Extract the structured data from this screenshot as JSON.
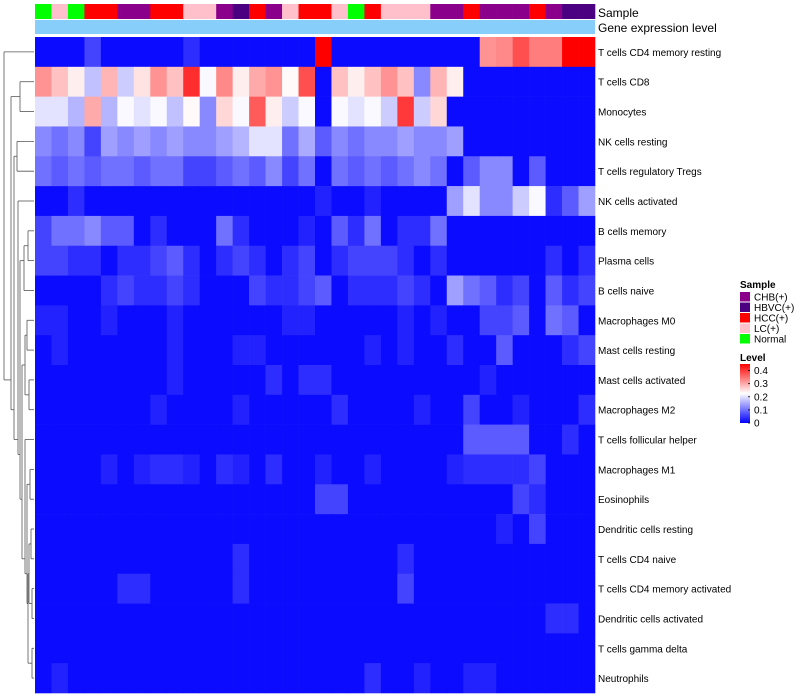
{
  "chart_data": {
    "type": "heatmap",
    "annotation_tracks": [
      "Sample",
      "Gene expression level"
    ],
    "rows": [
      "T cells CD4 memory resting",
      "T cells CD8",
      "Monocytes",
      "NK cells resting",
      "T cells regulatory  Tregs",
      "NK cells activated",
      "B cells memory",
      "Plasma cells",
      "B cells naive",
      "Macrophages M0",
      "Mast cells resting",
      "Mast cells activated",
      "Macrophages M2",
      "T cells follicular helper",
      "Macrophages M1",
      "Eosinophils",
      "Dendritic cells resting",
      "T cells CD4 naive",
      "T cells CD4 memory activated",
      "Dendritic cells activated",
      "T cells gamma delta",
      "Neutrophils"
    ],
    "columns": 34,
    "sample_groups": [
      "Normal",
      "LC(+)",
      "Normal",
      "HCC(+)",
      "HCC(+)",
      "CHB(+)",
      "CHB(+)",
      "HCC(+)",
      "HCC(+)",
      "LC(+)",
      "LC(+)",
      "CHB(+)",
      "HBVC(+)",
      "HCC(+)",
      "CHB(+)",
      "LC(+)",
      "HCC(+)",
      "HCC(+)",
      "LC(+)",
      "Normal",
      "HCC(+)",
      "LC(+)",
      "LC(+)",
      "LC(+)",
      "CHB(+)",
      "CHB(+)",
      "HCC(+)",
      "CHB(+)",
      "CHB(+)",
      "CHB(+)",
      "HCC(+)",
      "CHB(+)",
      "HBVC(+)",
      "HBVC(+)"
    ],
    "values": [
      [
        0.01,
        0.01,
        0.01,
        0.06,
        0.01,
        0.01,
        0.01,
        0.01,
        0.01,
        0.04,
        0.01,
        0.01,
        0.01,
        0.01,
        0.01,
        0.01,
        0.01,
        0.45,
        0.01,
        0.01,
        0.01,
        0.01,
        0.01,
        0.01,
        0.01,
        0.01,
        0.01,
        0.32,
        0.33,
        0.38,
        0.34,
        0.34,
        0.45,
        0.45
      ],
      [
        0.32,
        0.28,
        0.24,
        0.17,
        0.29,
        0.18,
        0.25,
        0.32,
        0.28,
        0.41,
        0.22,
        0.33,
        0.24,
        0.3,
        0.32,
        0.23,
        0.38,
        0.01,
        0.28,
        0.24,
        0.28,
        0.32,
        0.28,
        0.12,
        0.29,
        0.24,
        0.01,
        0.01,
        0.01,
        0.01,
        0.01,
        0.01,
        0.01,
        0.01
      ],
      [
        0.2,
        0.2,
        0.16,
        0.3,
        0.16,
        0.22,
        0.2,
        0.22,
        0.17,
        0.23,
        0.12,
        0.26,
        0.22,
        0.37,
        0.24,
        0.18,
        0.22,
        0.01,
        0.22,
        0.2,
        0.22,
        0.18,
        0.4,
        0.18,
        0.26,
        0.01,
        0.01,
        0.01,
        0.01,
        0.01,
        0.01,
        0.01,
        0.01,
        0.01
      ],
      [
        0.12,
        0.1,
        0.12,
        0.06,
        0.14,
        0.12,
        0.14,
        0.12,
        0.14,
        0.12,
        0.12,
        0.14,
        0.16,
        0.2,
        0.2,
        0.1,
        0.15,
        0.08,
        0.12,
        0.1,
        0.12,
        0.12,
        0.14,
        0.12,
        0.12,
        0.14,
        0.01,
        0.01,
        0.01,
        0.01,
        0.01,
        0.01,
        0.01,
        0.01
      ],
      [
        0.1,
        0.08,
        0.1,
        0.08,
        0.1,
        0.1,
        0.08,
        0.1,
        0.1,
        0.06,
        0.06,
        0.08,
        0.1,
        0.08,
        0.12,
        0.06,
        0.1,
        0.01,
        0.1,
        0.08,
        0.1,
        0.08,
        0.1,
        0.12,
        0.1,
        0.01,
        0.08,
        0.12,
        0.12,
        0.01,
        0.08,
        0.01,
        0.01,
        0.01
      ],
      [
        0.01,
        0.01,
        0.04,
        0.01,
        0.01,
        0.01,
        0.01,
        0.01,
        0.01,
        0.01,
        0.01,
        0.01,
        0.01,
        0.01,
        0.01,
        0.01,
        0.01,
        0.03,
        0.01,
        0.01,
        0.03,
        0.01,
        0.01,
        0.01,
        0.01,
        0.14,
        0.2,
        0.12,
        0.12,
        0.18,
        0.22,
        0.04,
        0.08,
        0.14
      ],
      [
        0.06,
        0.1,
        0.1,
        0.12,
        0.08,
        0.08,
        0.01,
        0.04,
        0.01,
        0.01,
        0.01,
        0.1,
        0.04,
        0.01,
        0.01,
        0.01,
        0.03,
        0.01,
        0.08,
        0.04,
        0.1,
        0.01,
        0.04,
        0.04,
        0.1,
        0.01,
        0.01,
        0.01,
        0.01,
        0.01,
        0.01,
        0.01,
        0.01,
        0.01
      ],
      [
        0.06,
        0.06,
        0.04,
        0.04,
        0.01,
        0.04,
        0.04,
        0.06,
        0.08,
        0.04,
        0.01,
        0.04,
        0.06,
        0.04,
        0.01,
        0.04,
        0.06,
        0.01,
        0.04,
        0.06,
        0.06,
        0.06,
        0.04,
        0.01,
        0.04,
        0.01,
        0.01,
        0.01,
        0.01,
        0.01,
        0.01,
        0.04,
        0.01,
        0.04
      ],
      [
        0.01,
        0.01,
        0.01,
        0.01,
        0.04,
        0.06,
        0.04,
        0.04,
        0.06,
        0.04,
        0.01,
        0.01,
        0.01,
        0.06,
        0.04,
        0.04,
        0.06,
        0.08,
        0.01,
        0.04,
        0.04,
        0.04,
        0.06,
        0.04,
        0.01,
        0.14,
        0.1,
        0.08,
        0.04,
        0.06,
        0.01,
        0.08,
        0.04,
        0.06
      ],
      [
        0.03,
        0.03,
        0.01,
        0.01,
        0.03,
        0.01,
        0.01,
        0.01,
        0.03,
        0.01,
        0.01,
        0.01,
        0.01,
        0.01,
        0.01,
        0.03,
        0.03,
        0.01,
        0.01,
        0.01,
        0.01,
        0.01,
        0.03,
        0.01,
        0.03,
        0.01,
        0.01,
        0.06,
        0.06,
        0.08,
        0.01,
        0.1,
        0.08,
        0.01
      ],
      [
        0.01,
        0.03,
        0.01,
        0.01,
        0.01,
        0.01,
        0.01,
        0.01,
        0.03,
        0.01,
        0.01,
        0.01,
        0.03,
        0.03,
        0.01,
        0.01,
        0.01,
        0.01,
        0.01,
        0.01,
        0.03,
        0.01,
        0.03,
        0.01,
        0.01,
        0.04,
        0.01,
        0.01,
        0.08,
        0.01,
        0.01,
        0.01,
        0.04,
        0.06
      ],
      [
        0.01,
        0.01,
        0.01,
        0.01,
        0.01,
        0.01,
        0.01,
        0.01,
        0.03,
        0.01,
        0.01,
        0.01,
        0.01,
        0.01,
        0.04,
        0.01,
        0.04,
        0.04,
        0.01,
        0.01,
        0.01,
        0.01,
        0.01,
        0.01,
        0.01,
        0.01,
        0.01,
        0.03,
        0.01,
        0.01,
        0.01,
        0.01,
        0.01,
        0.01
      ],
      [
        0.01,
        0.01,
        0.01,
        0.01,
        0.01,
        0.01,
        0.01,
        0.03,
        0.01,
        0.01,
        0.01,
        0.01,
        0.03,
        0.01,
        0.01,
        0.01,
        0.01,
        0.01,
        0.04,
        0.01,
        0.01,
        0.01,
        0.01,
        0.03,
        0.01,
        0.01,
        0.06,
        0.01,
        0.01,
        0.03,
        0.01,
        0.01,
        0.01,
        0.04
      ],
      [
        0.01,
        0.01,
        0.01,
        0.01,
        0.01,
        0.01,
        0.01,
        0.01,
        0.01,
        0.01,
        0.01,
        0.01,
        0.01,
        0.01,
        0.01,
        0.01,
        0.01,
        0.01,
        0.01,
        0.01,
        0.01,
        0.01,
        0.01,
        0.01,
        0.01,
        0.01,
        0.08,
        0.08,
        0.08,
        0.08,
        0.01,
        0.01,
        0.04,
        0.01
      ],
      [
        0.01,
        0.01,
        0.01,
        0.01,
        0.03,
        0.01,
        0.03,
        0.04,
        0.04,
        0.03,
        0.01,
        0.04,
        0.03,
        0.01,
        0.04,
        0.01,
        0.01,
        0.03,
        0.01,
        0.01,
        0.03,
        0.01,
        0.01,
        0.01,
        0.01,
        0.03,
        0.04,
        0.04,
        0.04,
        0.04,
        0.06,
        0.01,
        0.01,
        0.01
      ],
      [
        0.01,
        0.01,
        0.01,
        0.01,
        0.01,
        0.01,
        0.01,
        0.01,
        0.01,
        0.01,
        0.01,
        0.01,
        0.01,
        0.01,
        0.01,
        0.01,
        0.01,
        0.06,
        0.06,
        0.01,
        0.01,
        0.01,
        0.01,
        0.01,
        0.01,
        0.01,
        0.01,
        0.01,
        0.01,
        0.06,
        0.04,
        0.01,
        0.01,
        0.01
      ],
      [
        0.01,
        0.01,
        0.01,
        0.01,
        0.01,
        0.01,
        0.01,
        0.01,
        0.01,
        0.01,
        0.01,
        0.01,
        0.01,
        0.01,
        0.01,
        0.01,
        0.01,
        0.01,
        0.01,
        0.01,
        0.01,
        0.01,
        0.01,
        0.01,
        0.01,
        0.01,
        0.01,
        0.01,
        0.03,
        0.01,
        0.06,
        0.01,
        0.01,
        0.01
      ],
      [
        0.01,
        0.01,
        0.01,
        0.01,
        0.01,
        0.01,
        0.01,
        0.01,
        0.01,
        0.01,
        0.01,
        0.01,
        0.04,
        0.01,
        0.01,
        0.01,
        0.01,
        0.01,
        0.01,
        0.01,
        0.01,
        0.01,
        0.04,
        0.01,
        0.01,
        0.01,
        0.01,
        0.01,
        0.01,
        0.01,
        0.01,
        0.01,
        0.01,
        0.01
      ],
      [
        0.01,
        0.01,
        0.01,
        0.01,
        0.01,
        0.04,
        0.04,
        0.01,
        0.01,
        0.01,
        0.01,
        0.01,
        0.04,
        0.01,
        0.01,
        0.01,
        0.01,
        0.01,
        0.01,
        0.01,
        0.01,
        0.01,
        0.06,
        0.01,
        0.01,
        0.01,
        0.01,
        0.01,
        0.01,
        0.01,
        0.01,
        0.01,
        0.01,
        0.01
      ],
      [
        0.01,
        0.01,
        0.01,
        0.01,
        0.01,
        0.01,
        0.01,
        0.01,
        0.01,
        0.01,
        0.01,
        0.01,
        0.01,
        0.01,
        0.01,
        0.01,
        0.01,
        0.01,
        0.01,
        0.01,
        0.01,
        0.01,
        0.01,
        0.01,
        0.01,
        0.01,
        0.01,
        0.01,
        0.01,
        0.01,
        0.01,
        0.04,
        0.04,
        0.01
      ],
      [
        0.01,
        0.01,
        0.01,
        0.01,
        0.01,
        0.01,
        0.01,
        0.01,
        0.01,
        0.01,
        0.01,
        0.01,
        0.01,
        0.01,
        0.01,
        0.01,
        0.01,
        0.01,
        0.01,
        0.01,
        0.01,
        0.01,
        0.01,
        0.01,
        0.01,
        0.01,
        0.01,
        0.01,
        0.01,
        0.01,
        0.01,
        0.01,
        0.01,
        0.01
      ],
      [
        0.01,
        0.03,
        0.01,
        0.01,
        0.01,
        0.01,
        0.01,
        0.01,
        0.01,
        0.01,
        0.01,
        0.01,
        0.01,
        0.01,
        0.01,
        0.01,
        0.01,
        0.01,
        0.01,
        0.01,
        0.04,
        0.01,
        0.01,
        0.03,
        0.01,
        0.01,
        0.03,
        0.03,
        0.01,
        0.01,
        0.01,
        0.01,
        0.01,
        0.01
      ]
    ],
    "legend": {
      "sample_title": "Sample",
      "sample_entries": [
        {
          "label": "CHB(+)",
          "color": "#8B008B"
        },
        {
          "label": "HBVC(+)",
          "color": "#4B0082"
        },
        {
          "label": "HCC(+)",
          "color": "#FF0000"
        },
        {
          "label": "LC(+)",
          "color": "#FFC0CB"
        },
        {
          "label": "Normal",
          "color": "#00FF00"
        }
      ],
      "level_title": "Level",
      "level_ticks": [
        "0.4",
        "0.3",
        "0.2",
        "0.1",
        "0"
      ],
      "level_values": [
        0.4,
        0.3,
        0.2,
        0.1,
        0.0
      ],
      "range": [
        0,
        0.45
      ]
    },
    "colors": {
      "low": "#0000FF",
      "mid": "#FFFFFF",
      "high": "#FF0000",
      "gene_track": "#87CEFA"
    }
  }
}
